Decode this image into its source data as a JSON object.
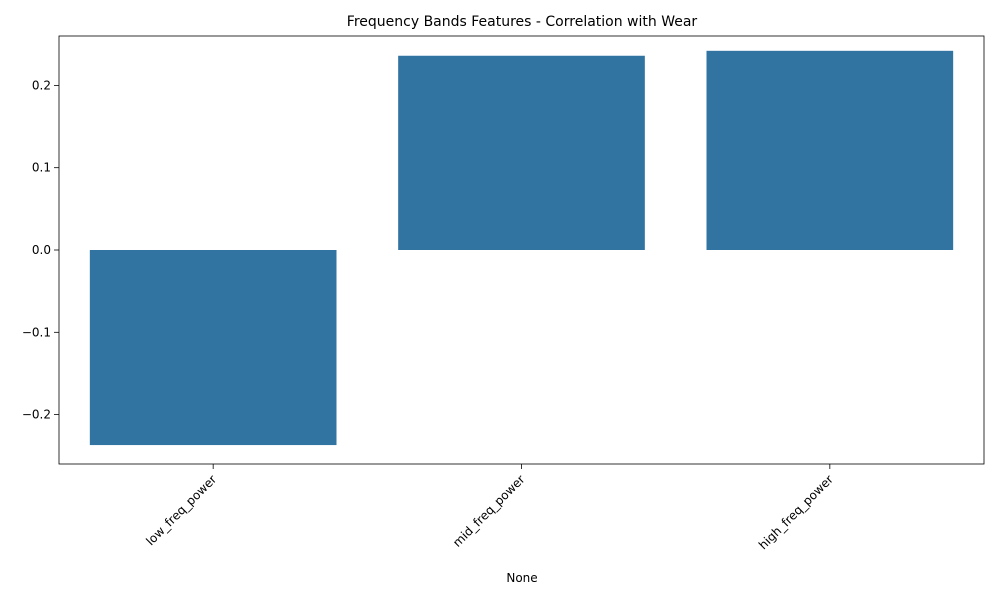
{
  "chart_data": {
    "type": "bar",
    "title": "Frequency Bands Features - Correlation with Wear",
    "xlabel": "None",
    "ylabel": "",
    "categories": [
      "low_freq_power",
      "mid_freq_power",
      "high_freq_power"
    ],
    "values": [
      -0.237,
      0.236,
      0.242
    ],
    "ylim": [
      -0.26,
      0.26
    ],
    "yticks": [
      -0.2,
      -0.1,
      0.0,
      0.1,
      0.2
    ],
    "ytick_labels": [
      "−0.2",
      "−0.1",
      "0.0",
      "0.1",
      "0.2"
    ],
    "bar_color": "#3274a1",
    "grid": false,
    "legend": "none"
  }
}
